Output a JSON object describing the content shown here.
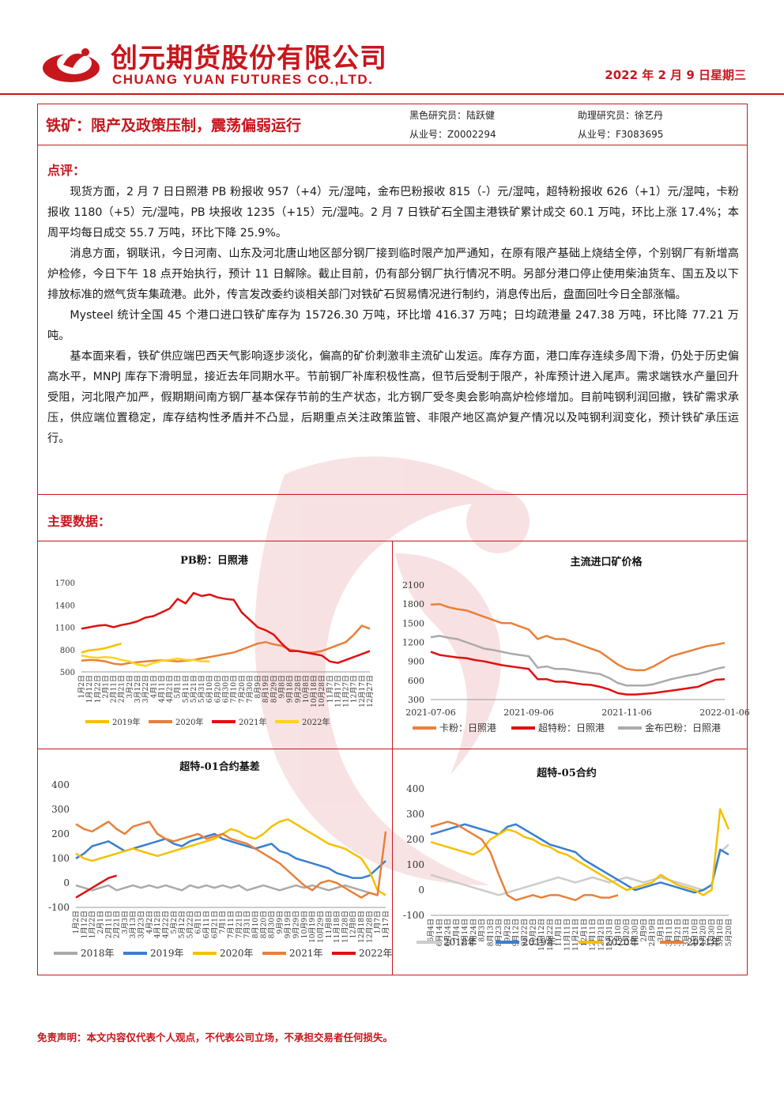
{
  "header": {
    "company_cn": "创元期货股份有限公司",
    "company_en": "CHUANG YUAN FUTURES CO.,LTD.",
    "date": "2022 年 2 月 9 日星期三"
  },
  "report": {
    "title": "铁矿：限产及政策压制，震荡偏弱运行",
    "analyst1_label": "黑色研究员：陆跃健",
    "analyst1_id": "从业号：Z0002294",
    "analyst2_label": "助理研究员：徐艺丹",
    "analyst2_id": "从业号：F3083695"
  },
  "comment": {
    "label": "点评：",
    "paragraphs": [
      "现货方面，2 月 7 日日照港 PB 粉报收 957（+4）元/湿吨，金布巴粉报收 815（-）元/湿吨，超特粉报收 626（+1）元/湿吨，卡粉报收 1180（+5）元/湿吨，PB 块报收 1235（+15）元/湿吨。2 月 7 日铁矿石全国主港铁矿累计成交 60.1 万吨，环比上涨 17.4%；本周平均每日成交 55.7 万吨，环比下降 25.9%。",
      "消息方面，钢联讯，今日河南、山东及河北唐山地区部分钢厂接到临时限产加严通知，在原有限产基础上烧结全停，个别钢厂有新增高炉检修，今日下午 18 点开始执行，预计 11 日解除。截止目前，仍有部分钢厂执行情况不明。另部分港口停止使用柴油货车、国五及以下排放标准的燃气货车集疏港。此外，传言发改委约谈相关部门对铁矿石贸易情况进行制约，消息传出后，盘面回吐今日全部涨幅。",
      "Mysteel 统计全国 45 个港口进口铁矿库存为 15726.30 万吨，环比增 416.37 万吨；日均疏港量 247.38 万吨，环比降 77.21 万吨。",
      "基本面来看，铁矿供应端巴西天气影响逐步淡化，偏高的矿价刺激非主流矿山发运。库存方面，港口库存连续多周下滑，仍处于历史偏高水平，MNPJ 库存下滑明显，接近去年同期水平。节前钢厂补库积极性高，但节后受制于限产，补库预计进入尾声。需求端铁水产量回升受阻，河北限产加严，假期期间南方钢厂基本保存节前的生产状态，北方钢厂受冬奥会影响高炉检修增加。目前吨钢利润回撤，铁矿需求承压，供应端位置稳定，库存结构性矛盾并不凸显，后期重点关注政策监管、非限产地区高炉复产情况以及吨钢利润变化，预计铁矿承压运行。"
    ]
  },
  "main_data": {
    "label": "主要数据："
  },
  "chart_data": [
    {
      "type": "line",
      "title": "PB粉：日照港",
      "ylim": [
        500,
        1700
      ],
      "yticks": [
        "1700",
        "1400",
        "1100",
        "800",
        "500"
      ],
      "xticks": [
        "1月2日",
        "1月12日",
        "1月22日",
        "2月1日",
        "2月11日",
        "2月21日",
        "3月2日",
        "3月12日",
        "3月22日",
        "4月1日",
        "4月11日",
        "4月21日",
        "5月1日",
        "5月11日",
        "5月21日",
        "5月31日",
        "6月10日",
        "6月20日",
        "6月30日",
        "7月10日",
        "7月20日",
        "7月30日",
        "8月9日",
        "8月19日",
        "8月29日",
        "9月8日",
        "9月18日",
        "9月28日",
        "10月8日",
        "10月18日",
        "10月28日",
        "11月7日",
        "11月17日",
        "11月27日",
        "12月7日",
        "12月17日",
        "12月27日"
      ],
      "series": [
        {
          "name": "2019年",
          "color": "#f5c000",
          "values": [
            760,
            790,
            800,
            820,
            850,
            880
          ]
        },
        {
          "name": "2020年",
          "color": "#e8803a",
          "values": [
            650,
            660,
            655,
            640,
            610,
            600,
            620,
            630,
            640,
            650,
            655,
            650,
            640,
            650,
            660,
            680,
            700,
            720,
            740,
            760,
            800,
            840,
            880,
            900,
            870,
            850,
            800,
            780,
            760,
            760,
            780,
            820,
            860,
            900,
            1000,
            1120,
            1080
          ]
        },
        {
          "name": "2021年",
          "color": "#e01010",
          "values": [
            1080,
            1100,
            1120,
            1130,
            1100,
            1130,
            1150,
            1180,
            1230,
            1250,
            1300,
            1350,
            1480,
            1420,
            1560,
            1520,
            1540,
            1500,
            1480,
            1470,
            1300,
            1200,
            1100,
            1060,
            1000,
            880,
            780,
            780,
            760,
            740,
            720,
            640,
            620,
            660,
            700,
            740,
            780
          ]
        },
        {
          "name": "2022年",
          "color": "#ffd21e",
          "values": [
            720,
            700,
            690,
            700,
            690,
            660,
            640,
            600,
            580,
            620,
            650,
            660,
            680,
            660,
            660,
            640,
            640
          ]
        }
      ]
    },
    {
      "type": "line",
      "title": "主流进口矿价格",
      "ylim": [
        300,
        2100
      ],
      "yticks": [
        "2100",
        "1800",
        "1500",
        "1200",
        "900",
        "600",
        "300"
      ],
      "xticks": [
        "2021-07-06",
        "2021-09-06",
        "2021-11-06",
        "2022-01-06"
      ],
      "series": [
        {
          "name": "卡粉：日照港",
          "color": "#e8803a",
          "values": [
            1790,
            1800,
            1750,
            1720,
            1700,
            1650,
            1600,
            1550,
            1500,
            1500,
            1450,
            1400,
            1250,
            1300,
            1250,
            1250,
            1200,
            1150,
            1100,
            1050,
            950,
            850,
            780,
            760,
            760,
            820,
            900,
            980,
            1020,
            1060,
            1100,
            1140,
            1160,
            1190
          ]
        },
        {
          "name": "超特粉：日照港",
          "color": "#e01010",
          "values": [
            1050,
            1000,
            980,
            960,
            950,
            920,
            900,
            870,
            840,
            820,
            800,
            780,
            620,
            620,
            580,
            580,
            560,
            540,
            530,
            500,
            460,
            400,
            380,
            380,
            390,
            400,
            420,
            440,
            460,
            480,
            500,
            560,
            610,
            620
          ]
        },
        {
          "name": "金布巴粉：日照港",
          "color": "#aaaaaa",
          "values": [
            1280,
            1300,
            1270,
            1250,
            1200,
            1150,
            1100,
            1080,
            1050,
            1020,
            1000,
            980,
            800,
            820,
            780,
            780,
            760,
            740,
            720,
            700,
            640,
            560,
            520,
            520,
            520,
            540,
            580,
            620,
            650,
            680,
            700,
            740,
            780,
            810
          ]
        }
      ]
    },
    {
      "type": "line",
      "title": "超特-01合约基差",
      "ylim": [
        -100,
        400
      ],
      "yticks": [
        "400",
        "300",
        "200",
        "100",
        "0",
        "-100"
      ],
      "xticks": [
        "1月2日",
        "1月12日",
        "1月22日",
        "2月1日",
        "2月11日",
        "2月21日",
        "3月3日",
        "3月13日",
        "3月23日",
        "4月2日",
        "4月12日",
        "4月22日",
        "5月2日",
        "5月12日",
        "5月22日",
        "6月1日",
        "6月11日",
        "6月21日",
        "7月1日",
        "7月11日",
        "7月21日",
        "7月31日",
        "8月10日",
        "8月20日",
        "8月30日",
        "9月9日",
        "9月19日",
        "9月29日",
        "10月9日",
        "10月19日",
        "10月29日",
        "11月8日",
        "11月18日",
        "11月28日",
        "12月8日",
        "12月18日",
        "12月28日",
        "1月7日",
        "1月17日"
      ],
      "series": [
        {
          "name": "2018年",
          "color": "#aaaaaa",
          "values": [
            -10,
            -20,
            -30,
            -20,
            -10,
            -30,
            -20,
            -10,
            -20,
            -10,
            -20,
            -10,
            -20,
            -30,
            -10,
            -20,
            -10,
            -20,
            -10,
            -20,
            -10,
            -30,
            -20,
            -10,
            -20,
            -30,
            -20,
            -10,
            -20,
            -10,
            -20,
            -30,
            -20,
            -10,
            -20,
            -30,
            -40,
            -50
          ]
        },
        {
          "name": "2019年",
          "color": "#3a7fd0",
          "values": [
            100,
            120,
            150,
            160,
            170,
            150,
            130,
            140,
            150,
            160,
            170,
            180,
            160,
            150,
            170,
            180,
            190,
            200,
            180,
            170,
            160,
            150,
            140,
            150,
            160,
            130,
            120,
            100,
            90,
            80,
            70,
            60,
            40,
            30,
            20,
            20,
            30,
            60,
            90
          ]
        },
        {
          "name": "2020年",
          "color": "#f5c000",
          "values": [
            120,
            100,
            90,
            100,
            110,
            120,
            130,
            140,
            130,
            120,
            110,
            120,
            130,
            140,
            150,
            160,
            170,
            180,
            200,
            220,
            210,
            190,
            180,
            200,
            230,
            250,
            260,
            240,
            220,
            200,
            180,
            160,
            150,
            140,
            120,
            100,
            50,
            -30,
            -50
          ]
        },
        {
          "name": "2021年",
          "color": "#e8803a",
          "values": [
            240,
            220,
            210,
            230,
            250,
            220,
            200,
            230,
            240,
            250,
            200,
            180,
            170,
            180,
            190,
            200,
            180,
            190,
            200,
            180,
            170,
            160,
            140,
            120,
            100,
            80,
            50,
            20,
            -10,
            -30,
            0,
            10,
            0,
            -20,
            -40,
            -60,
            -40,
            -50,
            210
          ]
        },
        {
          "name": "2022年",
          "color": "#e01010",
          "values": [
            -60,
            -40,
            -20,
            0,
            20,
            30
          ]
        }
      ]
    },
    {
      "type": "line",
      "title": "超特-05合约",
      "ylim": [
        -100,
        400
      ],
      "yticks": [
        "400",
        "300",
        "200",
        "100",
        "0",
        "-100"
      ],
      "xticks": [
        "6月4日",
        "6月14日",
        "6月24日",
        "7月4日",
        "7月14日",
        "7月24日",
        "8月3日",
        "8月13日",
        "8月23日",
        "9月2日",
        "9月12日",
        "9月22日",
        "10月2日",
        "10月12日",
        "10月22日",
        "11月1日",
        "11月11日",
        "11月21日",
        "12月1日",
        "12月11日",
        "12月21日",
        "12月31日",
        "1月10日",
        "1月20日",
        "1月30日",
        "2月9日",
        "2月19日",
        "3月1日",
        "3月11日",
        "3月21日",
        "3月31日",
        "4月10日",
        "4月20日",
        "4月30日",
        "5月10日",
        "5月20日"
      ],
      "series": [
        {
          "name": "2018年",
          "color": "#cccccc",
          "values": [
            60,
            50,
            40,
            30,
            20,
            10,
            0,
            -10,
            -20,
            -10,
            0,
            10,
            20,
            30,
            40,
            50,
            40,
            30,
            40,
            50,
            40,
            30,
            40,
            50,
            40,
            30,
            40,
            50,
            40,
            30,
            20,
            10,
            0,
            20,
            150,
            180
          ]
        },
        {
          "name": "2019年",
          "color": "#3a7fd0",
          "values": [
            220,
            230,
            240,
            250,
            260,
            250,
            240,
            230,
            220,
            250,
            260,
            240,
            220,
            200,
            180,
            170,
            160,
            150,
            120,
            100,
            80,
            60,
            40,
            20,
            0,
            10,
            20,
            30,
            20,
            10,
            0,
            -10,
            0,
            20,
            160,
            140
          ]
        },
        {
          "name": "2020年",
          "color": "#f5c000",
          "values": [
            190,
            180,
            170,
            160,
            150,
            140,
            160,
            200,
            220,
            240,
            230,
            210,
            200,
            180,
            170,
            150,
            140,
            120,
            100,
            80,
            60,
            40,
            20,
            0,
            10,
            20,
            30,
            60,
            40,
            20,
            10,
            0,
            -20,
            0,
            320,
            240
          ]
        },
        {
          "name": "2021年",
          "color": "#e8803a",
          "values": [
            250,
            260,
            270,
            260,
            240,
            220,
            200,
            150,
            60,
            -20,
            -40,
            -30,
            -20,
            -30,
            -20,
            -20,
            -30,
            -40,
            -20,
            -20,
            -30,
            -30,
            -20
          ]
        }
      ]
    }
  ],
  "disclaimer": "免责声明：本文内容仅代表个人观点，不代表公司立场，不承担交易者任何损失。"
}
